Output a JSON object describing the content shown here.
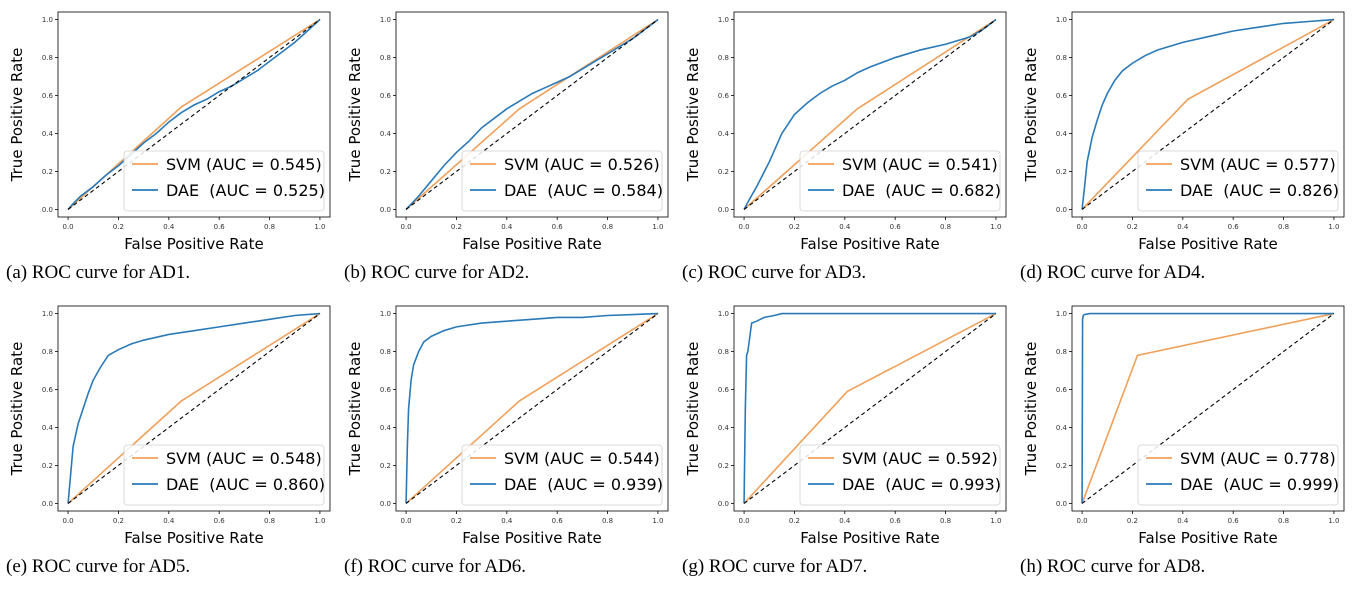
{
  "chart_data": [
    {
      "type": "line",
      "caption": "(a) ROC curve for AD1.",
      "xlabel": "False Positive Rate",
      "ylabel": "True Positive Rate",
      "xlim": [
        0,
        1
      ],
      "ylim": [
        0,
        1
      ],
      "xticks": [
        "0.0",
        "0.2",
        "0.4",
        "0.6",
        "0.8",
        "1.0"
      ],
      "yticks": [
        "0.0",
        "0.2",
        "0.4",
        "0.6",
        "0.8",
        "1.0"
      ],
      "legend_position": "lower-right",
      "series": [
        {
          "name": "SVM (AUC = 0.545)",
          "color": "#f0a05a",
          "x": [
            0,
            0.45,
            1
          ],
          "y": [
            0,
            0.54,
            1
          ]
        },
        {
          "name": "DAE  (AUC = 0.525)",
          "color": "#2a7ab8",
          "x": [
            0,
            0.02,
            0.05,
            0.1,
            0.15,
            0.2,
            0.25,
            0.3,
            0.35,
            0.4,
            0.45,
            0.5,
            0.55,
            0.6,
            0.65,
            0.7,
            0.75,
            0.8,
            0.85,
            0.9,
            0.95,
            1
          ],
          "y": [
            0,
            0.03,
            0.07,
            0.12,
            0.18,
            0.23,
            0.29,
            0.35,
            0.4,
            0.46,
            0.51,
            0.55,
            0.58,
            0.62,
            0.65,
            0.69,
            0.73,
            0.78,
            0.83,
            0.88,
            0.94,
            1
          ]
        },
        {
          "name": "",
          "color": "#000000",
          "dashed": true,
          "x": [
            0,
            1
          ],
          "y": [
            0,
            1
          ]
        }
      ]
    },
    {
      "type": "line",
      "caption": "(b) ROC curve for AD2.",
      "xlabel": "False Positive Rate",
      "ylabel": "True Positive Rate",
      "xlim": [
        0,
        1
      ],
      "ylim": [
        0,
        1
      ],
      "xticks": [
        "0.0",
        "0.2",
        "0.4",
        "0.6",
        "0.8",
        "1.0"
      ],
      "yticks": [
        "0.0",
        "0.2",
        "0.4",
        "0.6",
        "0.8",
        "1.0"
      ],
      "legend_position": "lower-right",
      "series": [
        {
          "name": "SVM (AUC = 0.526)",
          "color": "#f0a05a",
          "x": [
            0,
            0.45,
            1
          ],
          "y": [
            0,
            0.53,
            1
          ]
        },
        {
          "name": "DAE  (AUC = 0.584)",
          "color": "#2a7ab8",
          "x": [
            0,
            0.05,
            0.1,
            0.15,
            0.2,
            0.25,
            0.3,
            0.35,
            0.4,
            0.45,
            0.5,
            0.55,
            0.6,
            0.65,
            0.7,
            0.75,
            0.8,
            0.85,
            0.9,
            0.95,
            1
          ],
          "y": [
            0,
            0.07,
            0.15,
            0.23,
            0.3,
            0.36,
            0.43,
            0.48,
            0.53,
            0.57,
            0.61,
            0.64,
            0.67,
            0.7,
            0.74,
            0.78,
            0.82,
            0.86,
            0.9,
            0.95,
            1
          ]
        },
        {
          "name": "",
          "color": "#000000",
          "dashed": true,
          "x": [
            0,
            1
          ],
          "y": [
            0,
            1
          ]
        }
      ]
    },
    {
      "type": "line",
      "caption": "(c) ROC curve for AD3.",
      "xlabel": "False Positive Rate",
      "ylabel": "True Positive Rate",
      "xlim": [
        0,
        1
      ],
      "ylim": [
        0,
        1
      ],
      "xticks": [
        "0.0",
        "0.2",
        "0.4",
        "0.6",
        "0.8",
        "1.0"
      ],
      "yticks": [
        "0.0",
        "0.2",
        "0.4",
        "0.6",
        "0.8",
        "1.0"
      ],
      "legend_position": "lower-right",
      "series": [
        {
          "name": "SVM (AUC = 0.541)",
          "color": "#f0a05a",
          "x": [
            0,
            0.45,
            1
          ],
          "y": [
            0,
            0.53,
            1
          ]
        },
        {
          "name": "DAE  (AUC = 0.682)",
          "color": "#2a7ab8",
          "x": [
            0,
            0.02,
            0.05,
            0.1,
            0.15,
            0.2,
            0.25,
            0.3,
            0.35,
            0.4,
            0.45,
            0.5,
            0.6,
            0.7,
            0.8,
            0.9,
            0.95,
            1
          ],
          "y": [
            0,
            0.05,
            0.12,
            0.25,
            0.4,
            0.5,
            0.56,
            0.61,
            0.65,
            0.68,
            0.72,
            0.75,
            0.8,
            0.84,
            0.87,
            0.91,
            0.95,
            1
          ]
        },
        {
          "name": "",
          "color": "#000000",
          "dashed": true,
          "x": [
            0,
            1
          ],
          "y": [
            0,
            1
          ]
        }
      ]
    },
    {
      "type": "line",
      "caption": "(d) ROC curve for AD4.",
      "xlabel": "False Positive Rate",
      "ylabel": "True Positive Rate",
      "xlim": [
        0,
        1
      ],
      "ylim": [
        0,
        1
      ],
      "xticks": [
        "0.0",
        "0.2",
        "0.4",
        "0.6",
        "0.8",
        "1.0"
      ],
      "yticks": [
        "0.0",
        "0.2",
        "0.4",
        "0.6",
        "0.8",
        "1.0"
      ],
      "legend_position": "lower-right",
      "series": [
        {
          "name": "SVM (AUC = 0.577)",
          "color": "#f0a05a",
          "x": [
            0,
            0.42,
            1
          ],
          "y": [
            0,
            0.58,
            1
          ]
        },
        {
          "name": "DAE  (AUC = 0.826)",
          "color": "#2a7ab8",
          "x": [
            0,
            0.01,
            0.02,
            0.04,
            0.06,
            0.08,
            0.1,
            0.13,
            0.16,
            0.2,
            0.25,
            0.3,
            0.4,
            0.5,
            0.6,
            0.7,
            0.8,
            0.9,
            1
          ],
          "y": [
            0,
            0.12,
            0.25,
            0.38,
            0.47,
            0.55,
            0.61,
            0.68,
            0.73,
            0.77,
            0.81,
            0.84,
            0.88,
            0.91,
            0.94,
            0.96,
            0.98,
            0.99,
            1
          ]
        },
        {
          "name": "",
          "color": "#000000",
          "dashed": true,
          "x": [
            0,
            1
          ],
          "y": [
            0,
            1
          ]
        }
      ]
    },
    {
      "type": "line",
      "caption": "(e) ROC curve for AD5.",
      "xlabel": "False Positive Rate",
      "ylabel": "True Positive Rate",
      "xlim": [
        0,
        1
      ],
      "ylim": [
        0,
        1
      ],
      "xticks": [
        "0.0",
        "0.2",
        "0.4",
        "0.6",
        "0.8",
        "1.0"
      ],
      "yticks": [
        "0.0",
        "0.2",
        "0.4",
        "0.6",
        "0.8",
        "1.0"
      ],
      "legend_position": "lower-right",
      "series": [
        {
          "name": "SVM (AUC = 0.548)",
          "color": "#f0a05a",
          "x": [
            0,
            0.45,
            1
          ],
          "y": [
            0,
            0.54,
            1
          ]
        },
        {
          "name": "DAE  (AUC = 0.860)",
          "color": "#2a7ab8",
          "x": [
            0,
            0.01,
            0.02,
            0.04,
            0.06,
            0.08,
            0.1,
            0.13,
            0.16,
            0.2,
            0.25,
            0.3,
            0.4,
            0.5,
            0.6,
            0.7,
            0.8,
            0.9,
            1
          ],
          "y": [
            0,
            0.15,
            0.3,
            0.42,
            0.5,
            0.58,
            0.65,
            0.72,
            0.78,
            0.81,
            0.84,
            0.86,
            0.89,
            0.91,
            0.93,
            0.95,
            0.97,
            0.99,
            1
          ]
        },
        {
          "name": "",
          "color": "#000000",
          "dashed": true,
          "x": [
            0,
            1
          ],
          "y": [
            0,
            1
          ]
        }
      ]
    },
    {
      "type": "line",
      "caption": "(f) ROC curve for AD6.",
      "xlabel": "False Positive Rate",
      "ylabel": "True Positive Rate",
      "xlim": [
        0,
        1
      ],
      "ylim": [
        0,
        1
      ],
      "xticks": [
        "0.0",
        "0.2",
        "0.4",
        "0.6",
        "0.8",
        "1.0"
      ],
      "yticks": [
        "0.0",
        "0.2",
        "0.4",
        "0.6",
        "0.8",
        "1.0"
      ],
      "legend_position": "lower-right",
      "series": [
        {
          "name": "SVM (AUC = 0.544)",
          "color": "#f0a05a",
          "x": [
            0,
            0.45,
            1
          ],
          "y": [
            0,
            0.54,
            1
          ]
        },
        {
          "name": "DAE  (AUC = 0.939)",
          "color": "#2a7ab8",
          "x": [
            0,
            0.005,
            0.01,
            0.02,
            0.03,
            0.05,
            0.07,
            0.1,
            0.15,
            0.2,
            0.3,
            0.4,
            0.5,
            0.6,
            0.7,
            0.8,
            0.9,
            1
          ],
          "y": [
            0,
            0.3,
            0.5,
            0.65,
            0.73,
            0.8,
            0.85,
            0.88,
            0.91,
            0.93,
            0.95,
            0.96,
            0.97,
            0.98,
            0.98,
            0.99,
            0.995,
            1
          ]
        },
        {
          "name": "",
          "color": "#000000",
          "dashed": true,
          "x": [
            0,
            1
          ],
          "y": [
            0,
            1
          ]
        }
      ]
    },
    {
      "type": "line",
      "caption": "(g) ROC curve for AD7.",
      "xlabel": "False Positive Rate",
      "ylabel": "True Positive Rate",
      "xlim": [
        0,
        1
      ],
      "ylim": [
        0,
        1
      ],
      "xticks": [
        "0.0",
        "0.2",
        "0.4",
        "0.6",
        "0.8",
        "1.0"
      ],
      "yticks": [
        "0.0",
        "0.2",
        "0.4",
        "0.6",
        "0.8",
        "1.0"
      ],
      "legend_position": "lower-right",
      "series": [
        {
          "name": "SVM (AUC = 0.592)",
          "color": "#f0a05a",
          "x": [
            0,
            0.41,
            1
          ],
          "y": [
            0,
            0.59,
            1
          ]
        },
        {
          "name": "DAE  (AUC = 0.993)",
          "color": "#2a7ab8",
          "x": [
            0,
            0.005,
            0.01,
            0.015,
            0.02,
            0.03,
            0.05,
            0.08,
            0.12,
            0.15,
            1
          ],
          "y": [
            0,
            0.5,
            0.78,
            0.8,
            0.85,
            0.95,
            0.96,
            0.98,
            0.99,
            1,
            1
          ]
        },
        {
          "name": "",
          "color": "#000000",
          "dashed": true,
          "x": [
            0,
            1
          ],
          "y": [
            0,
            1
          ]
        }
      ]
    },
    {
      "type": "line",
      "caption": "(h) ROC curve for AD8.",
      "xlabel": "False Positive Rate",
      "ylabel": "True Positive Rate",
      "xlim": [
        0,
        1
      ],
      "ylim": [
        0,
        1
      ],
      "xticks": [
        "0.0",
        "0.2",
        "0.4",
        "0.6",
        "0.8",
        "1.0"
      ],
      "yticks": [
        "0.0",
        "0.2",
        "0.4",
        "0.6",
        "0.8",
        "1.0"
      ],
      "legend_position": "lower-right",
      "series": [
        {
          "name": "SVM (AUC = 0.778)",
          "color": "#f0a05a",
          "x": [
            0,
            0.22,
            1
          ],
          "y": [
            0,
            0.78,
            1
          ]
        },
        {
          "name": "DAE  (AUC = 0.999)",
          "color": "#2a7ab8",
          "x": [
            0,
            0.002,
            0.005,
            0.01,
            0.03,
            1
          ],
          "y": [
            0,
            0.97,
            0.99,
            0.995,
            1,
            1
          ]
        },
        {
          "name": "",
          "color": "#000000",
          "dashed": true,
          "x": [
            0,
            1
          ],
          "y": [
            0,
            1
          ]
        }
      ]
    }
  ]
}
